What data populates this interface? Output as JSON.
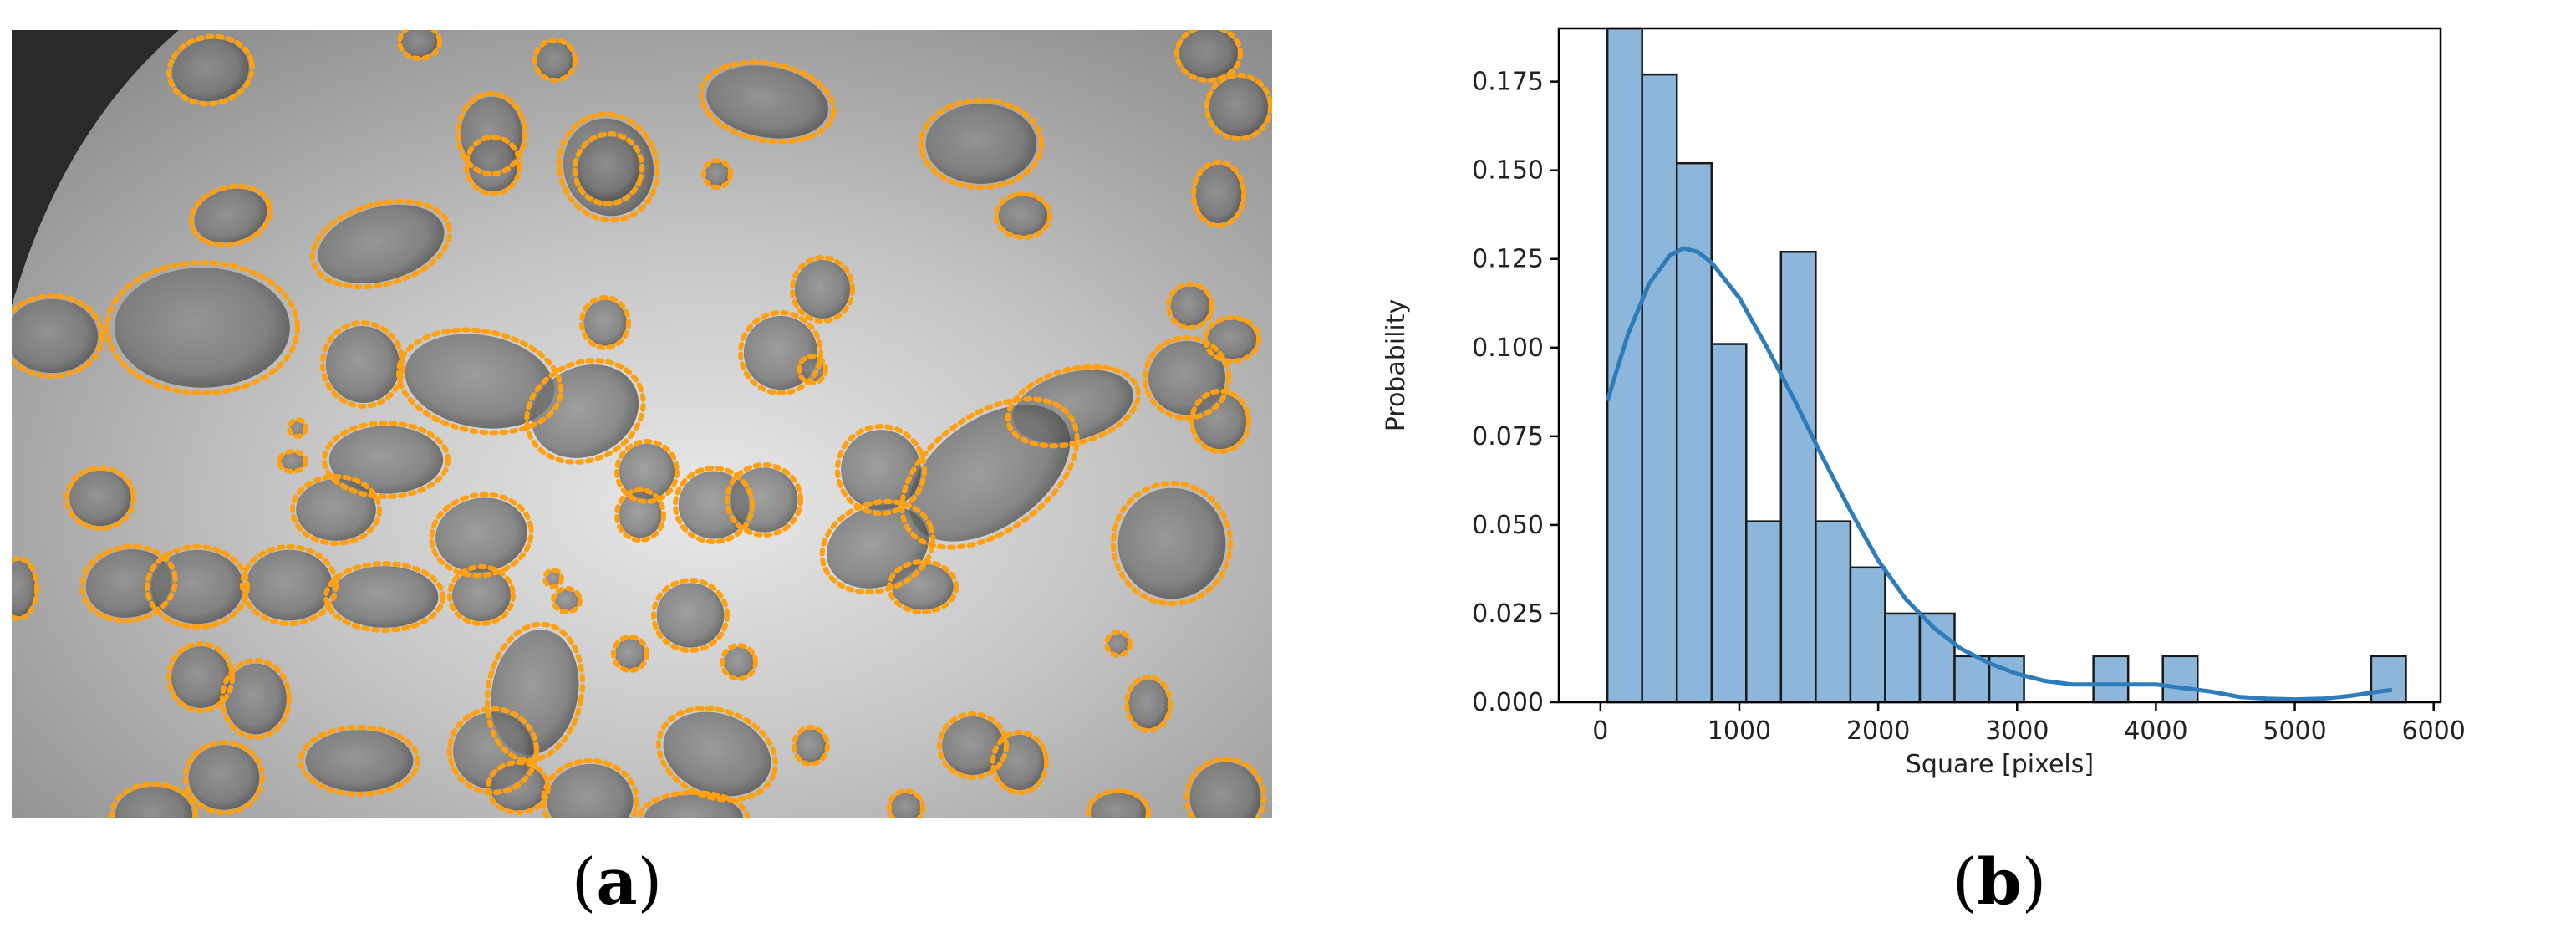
{
  "panels": {
    "a": {
      "label_open": "(",
      "label_letter": "a",
      "label_close": ")"
    },
    "b": {
      "label_open": "(",
      "label_letter": "b",
      "label_close": ")"
    }
  },
  "colors": {
    "contour": "#FFA010",
    "bar_fill": "#8DB7DA",
    "bar_edge": "#1a1a1a",
    "kde_line": "#2E7DBA"
  },
  "chart_data": {
    "type": "bar",
    "subtype": "histogram-with-kde",
    "title": "",
    "xlabel": "Square [pixels]",
    "ylabel": "Probability",
    "xlim": [
      -300,
      6050
    ],
    "ylim": [
      0,
      0.19
    ],
    "xticks": [
      0,
      1000,
      2000,
      3000,
      4000,
      5000,
      6000
    ],
    "xtick_labels": [
      "0",
      "1000",
      "2000",
      "3000",
      "4000",
      "5000",
      "6000"
    ],
    "yticks": [
      0,
      0.025,
      0.05,
      0.075,
      0.1,
      0.125,
      0.15,
      0.175
    ],
    "ytick_labels": [
      "0.000",
      "0.025",
      "0.050",
      "0.075",
      "0.100",
      "0.125",
      "0.150",
      "0.175"
    ],
    "grid": false,
    "bin_width": 250,
    "bins": [
      {
        "x0": 50,
        "x1": 300,
        "value": 0.19
      },
      {
        "x0": 300,
        "x1": 550,
        "value": 0.177
      },
      {
        "x0": 550,
        "x1": 800,
        "value": 0.152
      },
      {
        "x0": 800,
        "x1": 1050,
        "value": 0.101
      },
      {
        "x0": 1050,
        "x1": 1300,
        "value": 0.051
      },
      {
        "x0": 1300,
        "x1": 1550,
        "value": 0.127
      },
      {
        "x0": 1550,
        "x1": 1800,
        "value": 0.051
      },
      {
        "x0": 1800,
        "x1": 2050,
        "value": 0.038
      },
      {
        "x0": 2050,
        "x1": 2300,
        "value": 0.025
      },
      {
        "x0": 2300,
        "x1": 2550,
        "value": 0.025
      },
      {
        "x0": 2550,
        "x1": 2800,
        "value": 0.013
      },
      {
        "x0": 2800,
        "x1": 3050,
        "value": 0.013
      },
      {
        "x0": 3550,
        "x1": 3800,
        "value": 0.013
      },
      {
        "x0": 4050,
        "x1": 4300,
        "value": 0.013
      },
      {
        "x0": 5550,
        "x1": 5800,
        "value": 0.013
      }
    ],
    "kde": {
      "x": [
        50,
        200,
        350,
        500,
        600,
        700,
        800,
        1000,
        1200,
        1400,
        1600,
        1800,
        2000,
        2200,
        2400,
        2600,
        2800,
        3000,
        3200,
        3400,
        3600,
        3800,
        4000,
        4200,
        4400,
        4600,
        4800,
        5000,
        5200,
        5400,
        5600,
        5700
      ],
      "y": [
        0.085,
        0.104,
        0.118,
        0.126,
        0.128,
        0.127,
        0.124,
        0.114,
        0.1,
        0.085,
        0.069,
        0.054,
        0.04,
        0.029,
        0.021,
        0.015,
        0.011,
        0.008,
        0.006,
        0.005,
        0.005,
        0.005,
        0.005,
        0.004,
        0.003,
        0.0015,
        0.001,
        0.0008,
        0.001,
        0.0018,
        0.003,
        0.0035
      ]
    }
  }
}
